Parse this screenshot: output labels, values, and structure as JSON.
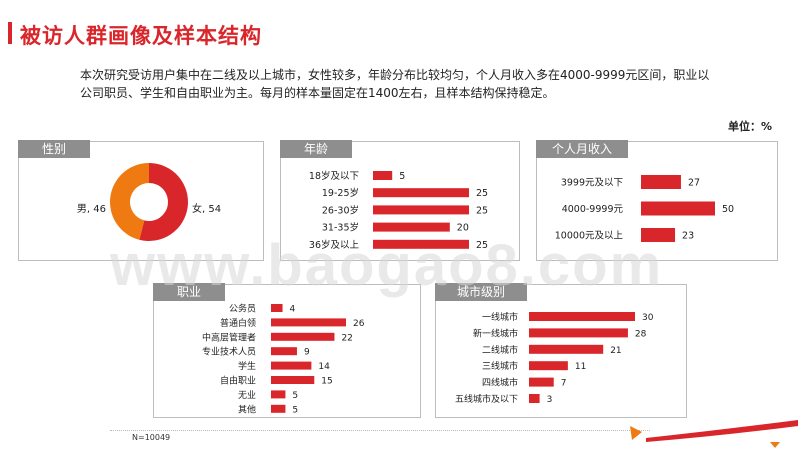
{
  "page": {
    "title": "被访人群画像及样本结构",
    "intro": "本次研究受访用户集中在二线及以上城市，女性较多，年龄分布比较均匀，个人月收入多在4000-9999元区间，职业以公司职员、学生和自由职业为主。每月的样本量固定在1400左右，且样本结构保持稳定。",
    "unit": "单位：%",
    "sample": "N=10049",
    "watermark": "www.baogao8.com"
  },
  "colors": {
    "accent": "#d9262b",
    "orange": "#f07a12",
    "panel_label": "#8e8e8e"
  },
  "chart_data": [
    {
      "id": "gender",
      "type": "pie",
      "title": "性别",
      "slices": [
        {
          "label": "女",
          "value": 54,
          "color": "#d9262b"
        },
        {
          "label": "男",
          "value": 46,
          "color": "#f07a12"
        }
      ]
    },
    {
      "id": "age",
      "type": "bar",
      "title": "年龄",
      "categories": [
        "18岁及以下",
        "19-25岁",
        "26-30岁",
        "31-35岁",
        "36岁及以上"
      ],
      "values": [
        5,
        25,
        25,
        20,
        25
      ]
    },
    {
      "id": "income",
      "type": "bar",
      "title": "个人月收入",
      "categories": [
        "3999元及以下",
        "4000-9999元",
        "10000元及以上"
      ],
      "values": [
        27,
        50,
        23
      ]
    },
    {
      "id": "occupation",
      "type": "bar",
      "title": "职业",
      "categories": [
        "公务员",
        "普通白领",
        "中高层管理者",
        "专业技术人员",
        "学生",
        "自由职业",
        "无业",
        "其他"
      ],
      "values": [
        4,
        26,
        22,
        9,
        14,
        15,
        5,
        5
      ]
    },
    {
      "id": "city",
      "type": "bar",
      "title": "城市级别",
      "categories": [
        "一线城市",
        "新一线城市",
        "二线城市",
        "三线城市",
        "四线城市",
        "五线城市及以下"
      ],
      "values": [
        30,
        28,
        21,
        11,
        7,
        3
      ]
    }
  ]
}
